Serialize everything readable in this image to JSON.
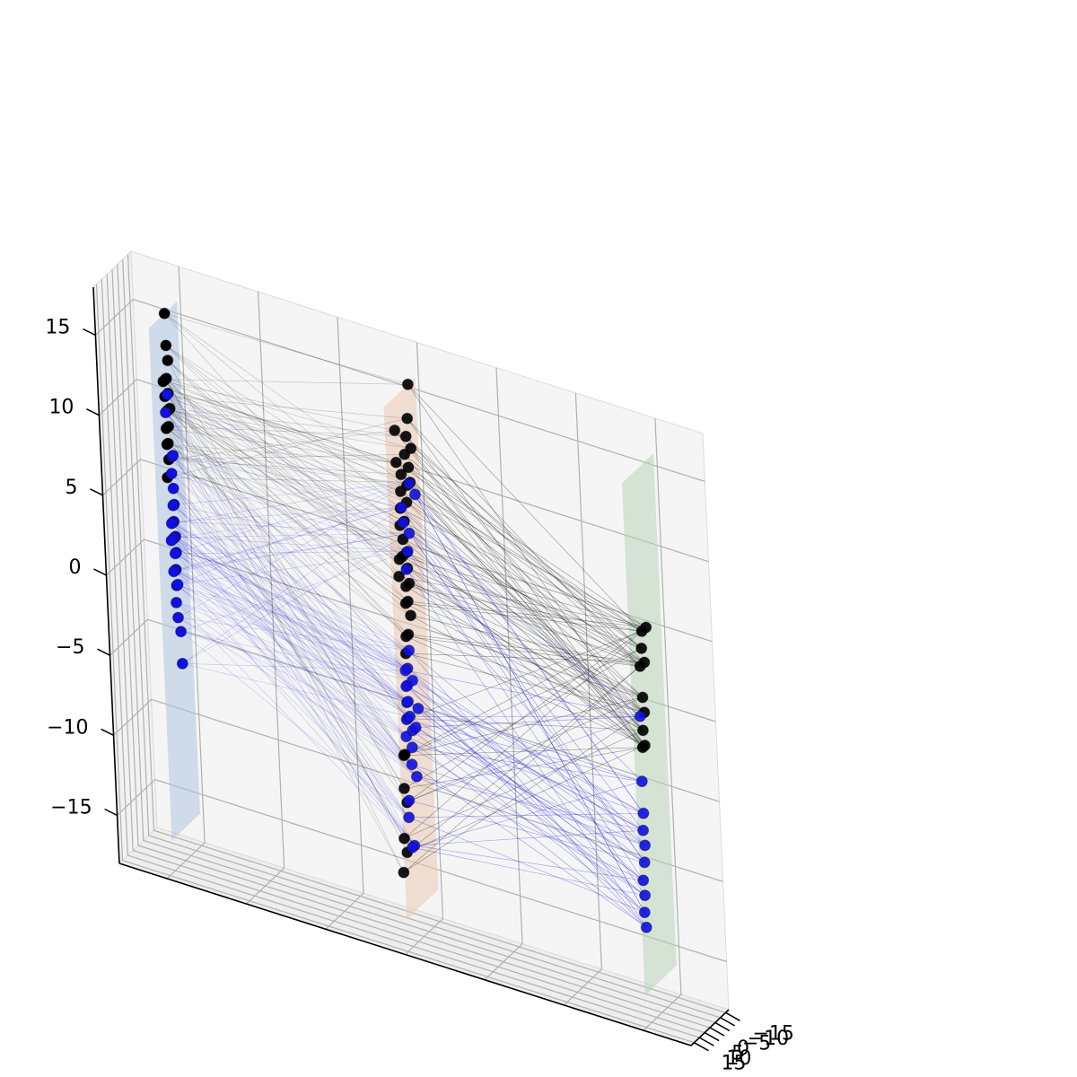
{
  "chart_data": {
    "type": "scatter",
    "projection": "3d",
    "title": "",
    "xlabel": "",
    "ylabel": "",
    "zlabel": "",
    "grid": true,
    "legend": "none",
    "xlim": [
      -18,
      18
    ],
    "ylim": [
      -18,
      18
    ],
    "zlim": [
      -18,
      18
    ],
    "x_ticks": [],
    "y_ticks": [
      -15,
      -10,
      -5,
      0,
      5,
      10,
      15
    ],
    "z_ticks": [
      -15,
      -10,
      -5,
      0,
      5,
      10,
      15
    ],
    "planes": [
      {
        "x": -15,
        "y_range": [
          -15,
          12
        ],
        "z_range": [
          -16,
          16
        ],
        "color": "#b0c4de",
        "opacity": 0.55
      },
      {
        "x": 0,
        "y_range": [
          -15,
          15
        ],
        "z_range": [
          -16,
          16
        ],
        "color": "#e8c8b0",
        "opacity": 0.55
      },
      {
        "x": 15,
        "y_range": [
          -15,
          15
        ],
        "z_range": [
          -16,
          16
        ],
        "color": "#b8d4b8",
        "opacity": 0.55
      }
    ],
    "series": [
      {
        "color": "#000000",
        "points": [
          [
            -15,
            -3,
            16
          ],
          [
            -15,
            -3,
            14
          ],
          [
            -15,
            -4,
            13
          ],
          [
            -15,
            -2,
            12
          ],
          [
            -15,
            -1,
            12
          ],
          [
            -15,
            -4,
            10
          ],
          [
            -15,
            -3,
            10
          ],
          [
            -15,
            -2,
            10
          ],
          [
            -15,
            -1,
            10
          ],
          [
            -15,
            -2,
            9
          ],
          [
            -15,
            -3,
            11
          ],
          [
            -15,
            0,
            11
          ],
          [
            -15,
            1,
            12
          ],
          [
            -15,
            0,
            9
          ],
          [
            -15,
            -1,
            8
          ],
          [
            -15,
            1,
            6
          ],
          [
            -15,
            -1,
            7
          ],
          [
            -15,
            0,
            8
          ],
          [
            0,
            -8,
            16
          ],
          [
            0,
            -6,
            14
          ],
          [
            0,
            -4,
            13
          ],
          [
            0,
            -2,
            12
          ],
          [
            0,
            -5,
            11
          ],
          [
            0,
            -3,
            10
          ],
          [
            0,
            -6,
            10
          ],
          [
            0,
            -2,
            9
          ],
          [
            0,
            2,
            11
          ],
          [
            0,
            3,
            10
          ],
          [
            0,
            4,
            9
          ],
          [
            0,
            1,
            8
          ],
          [
            0,
            0,
            6
          ],
          [
            0,
            6,
            14
          ],
          [
            0,
            1,
            3
          ],
          [
            0,
            2,
            4
          ],
          [
            0,
            0,
            5
          ],
          [
            0,
            -1,
            4
          ],
          [
            0,
            3,
            7
          ],
          [
            0,
            4,
            6
          ],
          [
            0,
            6,
            12
          ],
          [
            0,
            -8,
            12
          ],
          [
            0,
            5,
            8
          ],
          [
            0,
            7,
            6
          ],
          [
            0,
            8,
            5
          ],
          [
            0,
            3,
            3
          ],
          [
            0,
            4,
            1
          ],
          [
            0,
            5,
            0
          ],
          [
            0,
            12,
            -8
          ],
          [
            0,
            10,
            -9
          ],
          [
            0,
            14,
            -11
          ],
          [
            0,
            12,
            -12
          ],
          [
            0,
            16,
            -13
          ],
          [
            0,
            11,
            -6
          ],
          [
            0,
            10,
            -6
          ],
          [
            0,
            6,
            -4
          ],
          [
            0,
            -1,
            2
          ],
          [
            0,
            2,
            1
          ],
          [
            15,
            3,
            6
          ],
          [
            15,
            4,
            5
          ],
          [
            15,
            6,
            4
          ],
          [
            15,
            5,
            2
          ],
          [
            15,
            4,
            1
          ],
          [
            15,
            6,
            0
          ],
          [
            15,
            7,
            -1
          ],
          [
            15,
            5,
            -1
          ],
          [
            15,
            -1,
            6
          ],
          [
            15,
            2,
            4
          ]
        ]
      },
      {
        "color": "#1010e0",
        "points": [
          [
            -15,
            -2,
            11
          ],
          [
            -15,
            0,
            10
          ],
          [
            -15,
            -4,
            7
          ],
          [
            -15,
            -3,
            6
          ],
          [
            -15,
            -5,
            7
          ],
          [
            -15,
            -4,
            5
          ],
          [
            -15,
            -4,
            4
          ],
          [
            -15,
            -3,
            4
          ],
          [
            -15,
            -3,
            3
          ],
          [
            -15,
            -2,
            3
          ],
          [
            -15,
            -1,
            3
          ],
          [
            -15,
            -4,
            2
          ],
          [
            -15,
            -3,
            2
          ],
          [
            -15,
            -2,
            2
          ],
          [
            -15,
            -4,
            1
          ],
          [
            -15,
            -3,
            1
          ],
          [
            -15,
            -3,
            0
          ],
          [
            -15,
            -2,
            0
          ],
          [
            -15,
            -3,
            -1
          ],
          [
            -15,
            -4,
            -1
          ],
          [
            -15,
            -1,
            0
          ],
          [
            -15,
            -2,
            -2
          ],
          [
            -15,
            -3,
            -3
          ],
          [
            -15,
            -5,
            -4
          ],
          [
            -15,
            -5,
            -6
          ],
          [
            -15,
            0,
            2
          ],
          [
            0,
            3,
            9
          ],
          [
            0,
            -5,
            10
          ],
          [
            0,
            2,
            8
          ],
          [
            0,
            -1,
            6
          ],
          [
            0,
            1,
            5
          ],
          [
            0,
            -3,
            7
          ],
          [
            0,
            -10,
            9
          ],
          [
            0,
            4,
            -1
          ],
          [
            0,
            6,
            -3
          ],
          [
            0,
            5,
            -2
          ],
          [
            0,
            6,
            -1
          ],
          [
            0,
            6,
            -2
          ],
          [
            0,
            5,
            -3
          ],
          [
            0,
            7,
            -4
          ],
          [
            0,
            8,
            -5
          ],
          [
            0,
            4,
            -4
          ],
          [
            0,
            2,
            -5
          ],
          [
            0,
            0,
            -8
          ],
          [
            0,
            3,
            -6
          ],
          [
            0,
            4,
            -7
          ],
          [
            0,
            8,
            -9
          ],
          [
            0,
            9,
            -10
          ],
          [
            0,
            5,
            -12
          ],
          [
            0,
            7,
            -12
          ],
          [
            0,
            2,
            0
          ],
          [
            0,
            -1,
            -5
          ],
          [
            0,
            0,
            -2
          ],
          [
            0,
            -4,
            -4
          ],
          [
            15,
            8,
            1
          ],
          [
            15,
            9,
            -3
          ],
          [
            15,
            9,
            -5
          ],
          [
            15,
            9,
            -7
          ],
          [
            15,
            10,
            -6
          ],
          [
            15,
            10,
            -8
          ],
          [
            15,
            11,
            -10
          ],
          [
            15,
            12,
            -11
          ],
          [
            15,
            11,
            -12
          ],
          [
            15,
            12,
            -9
          ]
        ]
      }
    ]
  }
}
